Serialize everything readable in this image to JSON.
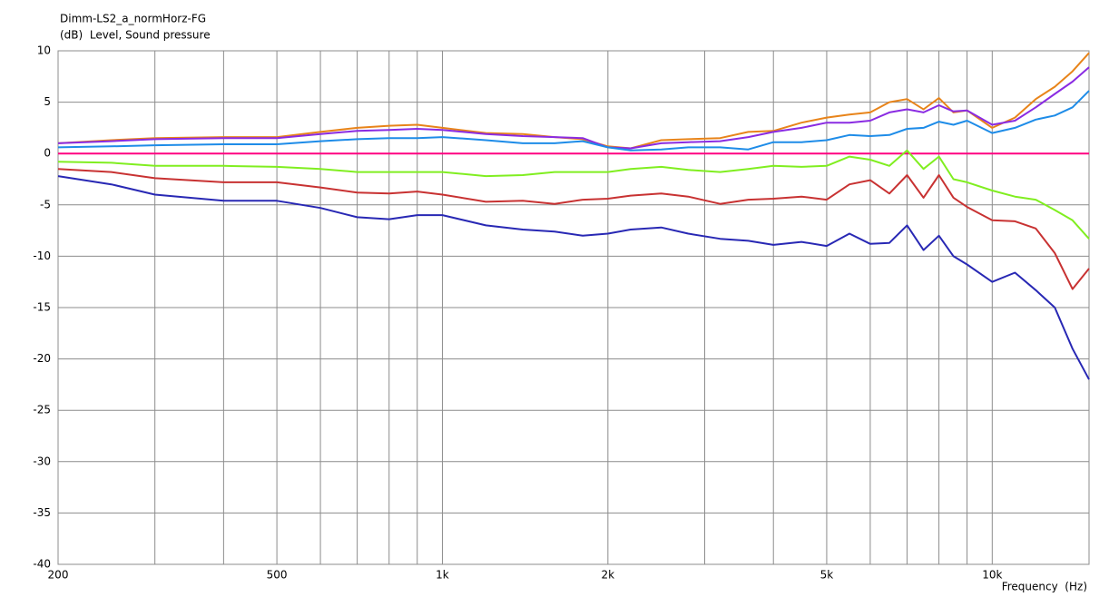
{
  "chart_data": {
    "type": "line",
    "title": "Dimm-LS2_a_normHorz-FG",
    "ylabel": "(dB)  Level, Sound pressure",
    "xlabel": "Frequency  (Hz)",
    "xscale": "log",
    "xlim": [
      200,
      15000
    ],
    "ylim": [
      -40,
      10
    ],
    "xticks": [
      200,
      500,
      {
        "value": 1000,
        "label": "1k"
      },
      {
        "value": 2000,
        "label": "2k"
      },
      {
        "value": 5000,
        "label": "5k"
      },
      {
        "value": 10000,
        "label": "10k"
      }
    ],
    "minor_xticks": [
      300,
      400,
      600,
      700,
      800,
      900,
      3000,
      4000,
      6000,
      7000,
      8000,
      9000
    ],
    "yticks": [
      10,
      5,
      0,
      -5,
      -10,
      -15,
      -20,
      -25,
      -30,
      -35,
      -40
    ],
    "grid": true,
    "x": [
      200,
      250,
      300,
      400,
      500,
      600,
      700,
      800,
      900,
      1000,
      1200,
      1400,
      1600,
      1800,
      2000,
      2200,
      2500,
      2800,
      3200,
      3600,
      4000,
      4500,
      5000,
      5500,
      6000,
      6500,
      7000,
      7500,
      8000,
      8500,
      9000,
      10000,
      11000,
      12000,
      13000,
      14000,
      15000
    ],
    "series": [
      {
        "color": "#e8841a",
        "values": [
          1.0,
          1.3,
          1.5,
          1.6,
          1.6,
          2.1,
          2.5,
          2.7,
          2.8,
          2.5,
          2.0,
          1.9,
          1.6,
          1.4,
          0.7,
          0.5,
          1.3,
          1.4,
          1.5,
          2.1,
          2.2,
          3.0,
          3.5,
          3.8,
          4.0,
          5.0,
          5.3,
          4.3,
          5.4,
          4.0,
          4.2,
          2.5,
          3.5,
          5.3,
          6.5,
          8.0,
          9.8
        ]
      },
      {
        "color": "#8a2be2",
        "values": [
          1.0,
          1.2,
          1.4,
          1.5,
          1.5,
          1.9,
          2.2,
          2.3,
          2.4,
          2.3,
          1.9,
          1.7,
          1.6,
          1.5,
          0.6,
          0.5,
          1.0,
          1.1,
          1.2,
          1.6,
          2.1,
          2.5,
          3.0,
          3.0,
          3.2,
          4.0,
          4.3,
          4.0,
          4.7,
          4.1,
          4.2,
          2.8,
          3.2,
          4.5,
          5.8,
          7.0,
          8.4
        ]
      },
      {
        "color": "#1e8ce8",
        "values": [
          0.6,
          0.7,
          0.8,
          0.9,
          0.9,
          1.2,
          1.4,
          1.5,
          1.5,
          1.6,
          1.3,
          1.0,
          1.0,
          1.2,
          0.6,
          0.3,
          0.4,
          0.6,
          0.6,
          0.4,
          1.1,
          1.1,
          1.3,
          1.8,
          1.7,
          1.8,
          2.4,
          2.5,
          3.1,
          2.8,
          3.2,
          2.0,
          2.5,
          3.3,
          3.7,
          4.5,
          6.1
        ]
      },
      {
        "color": "#ff0080",
        "values": [
          0,
          0,
          0,
          0,
          0,
          0,
          0,
          0,
          0,
          0,
          0,
          0,
          0,
          0,
          0,
          0,
          0,
          0,
          0,
          0,
          0,
          0,
          0,
          0,
          0,
          0,
          0,
          0,
          0,
          0,
          0,
          0,
          0,
          0,
          0,
          0,
          0
        ]
      },
      {
        "color": "#80ee20",
        "values": [
          -0.8,
          -0.9,
          -1.2,
          -1.2,
          -1.3,
          -1.5,
          -1.8,
          -1.8,
          -1.8,
          -1.8,
          -2.2,
          -2.1,
          -1.8,
          -1.8,
          -1.8,
          -1.5,
          -1.3,
          -1.6,
          -1.8,
          -1.5,
          -1.2,
          -1.3,
          -1.2,
          -0.3,
          -0.6,
          -1.2,
          0.3,
          -1.5,
          -0.3,
          -2.5,
          -2.8,
          -3.6,
          -4.2,
          -4.5,
          -5.5,
          -6.5,
          -8.3
        ]
      },
      {
        "color": "#c83232",
        "values": [
          -1.5,
          -1.8,
          -2.4,
          -2.8,
          -2.8,
          -3.3,
          -3.8,
          -3.9,
          -3.7,
          -4.0,
          -4.7,
          -4.6,
          -4.9,
          -4.5,
          -4.4,
          -4.1,
          -3.9,
          -4.2,
          -4.9,
          -4.5,
          -4.4,
          -4.2,
          -4.5,
          -3.0,
          -2.6,
          -3.9,
          -2.1,
          -4.3,
          -2.1,
          -4.3,
          -5.2,
          -6.5,
          -6.6,
          -7.3,
          -9.7,
          -13.2,
          -11.2
        ]
      },
      {
        "color": "#2828b4",
        "values": [
          -2.2,
          -3.0,
          -4.0,
          -4.6,
          -4.6,
          -5.3,
          -6.2,
          -6.4,
          -6.0,
          -6.0,
          -7.0,
          -7.4,
          -7.6,
          -8.0,
          -7.8,
          -7.4,
          -7.2,
          -7.8,
          -8.3,
          -8.5,
          -8.9,
          -8.6,
          -9.0,
          -7.8,
          -8.8,
          -8.7,
          -7.0,
          -9.4,
          -8.0,
          -10.0,
          -10.8,
          -12.5,
          -11.6,
          -13.3,
          -15.0,
          -19.0,
          -22.0
        ]
      }
    ]
  }
}
